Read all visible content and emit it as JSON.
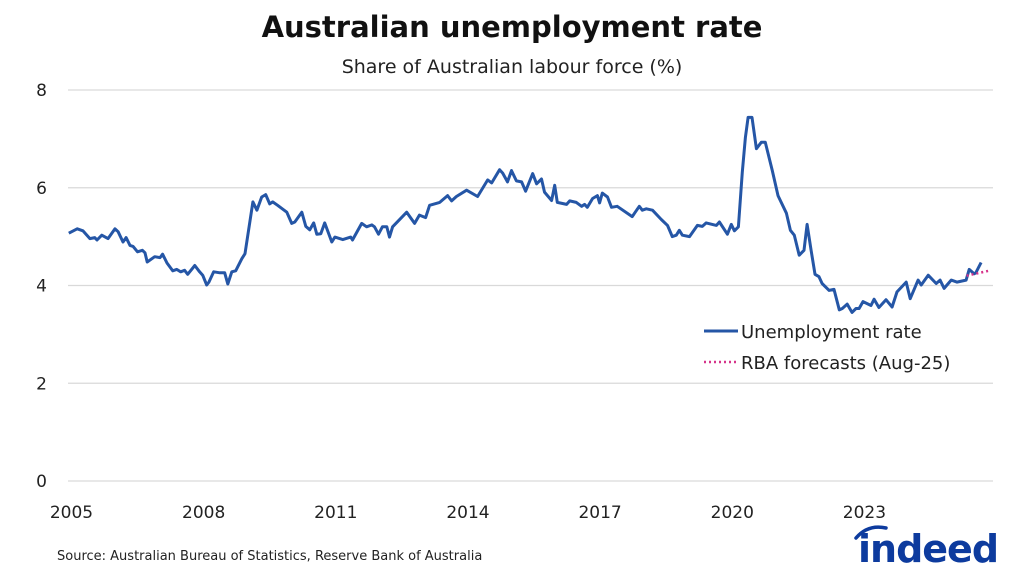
{
  "chart_data": {
    "type": "line",
    "title": "Australian unemployment rate",
    "subtitle": "Share of Australian labour force (%)",
    "xlabel": "",
    "ylabel": "",
    "xlim": [
      2005,
      2026.1
    ],
    "ylim": [
      0,
      8
    ],
    "yticks": [
      0,
      2,
      4,
      6,
      8
    ],
    "xticks": [
      2005,
      2008,
      2011,
      2014,
      2017,
      2020,
      2023
    ],
    "grid": "horizontal",
    "legend_position": "right",
    "series": [
      {
        "name": "Unemployment rate",
        "color": "#2556a6",
        "style": "solid",
        "x": [
          2005.12,
          2005.31,
          2005.44,
          2005.6,
          2005.71,
          2005.76,
          2005.87,
          2006.01,
          2006.17,
          2006.24,
          2006.35,
          2006.42,
          2006.51,
          2006.58,
          2006.68,
          2006.79,
          2006.85,
          2006.9,
          2007.07,
          2007.19,
          2007.25,
          2007.35,
          2007.48,
          2007.57,
          2007.66,
          2007.75,
          2007.82,
          2007.98,
          2008.09,
          2008.16,
          2008.25,
          2008.3,
          2008.41,
          2008.55,
          2008.66,
          2008.73,
          2008.82,
          2008.91,
          2009.05,
          2009.12,
          2009.3,
          2009.39,
          2009.5,
          2009.59,
          2009.68,
          2009.75,
          2009.86,
          2010.07,
          2010.18,
          2010.25,
          2010.41,
          2010.5,
          2010.59,
          2010.68,
          2010.75,
          2010.84,
          2010.93,
          2011.09,
          2011.16,
          2011.34,
          2011.52,
          2011.56,
          2011.77,
          2011.88,
          2012.0,
          2012.06,
          2012.15,
          2012.24,
          2012.34,
          2012.4,
          2012.47,
          2012.79,
          2012.97,
          2013.08,
          2013.22,
          2013.31,
          2013.54,
          2013.72,
          2013.81,
          2013.92,
          2014.15,
          2014.4,
          2014.63,
          2014.72,
          2014.9,
          2014.97,
          2015.08,
          2015.17,
          2015.28,
          2015.4,
          2015.49,
          2015.65,
          2015.74,
          2015.85,
          2015.92,
          2016.08,
          2016.15,
          2016.21,
          2016.42,
          2016.49,
          2016.64,
          2016.76,
          2016.83,
          2016.89,
          2017.01,
          2017.12,
          2017.17,
          2017.23,
          2017.35,
          2017.44,
          2017.57,
          2017.91,
          2018.07,
          2018.14,
          2018.23,
          2018.37,
          2018.57,
          2018.71,
          2018.82,
          2018.91,
          2018.98,
          2019.05,
          2019.21,
          2019.39,
          2019.5,
          2019.59,
          2019.82,
          2019.89,
          2020.07,
          2020.16,
          2020.23,
          2020.32,
          2020.41,
          2020.48,
          2020.54,
          2020.63,
          2020.73,
          2020.84,
          2020.93,
          2021.09,
          2021.22,
          2021.41,
          2021.5,
          2021.59,
          2021.7,
          2021.81,
          2021.88,
          2021.97,
          2022.06,
          2022.15,
          2022.22,
          2022.38,
          2022.49,
          2022.61,
          2022.68,
          2022.79,
          2022.9,
          2022.99,
          2023.06,
          2023.15,
          2023.33,
          2023.4,
          2023.51,
          2023.67,
          2023.81,
          2023.92,
          2024.13,
          2024.22,
          2024.4,
          2024.47,
          2024.63,
          2024.81,
          2024.9,
          2024.99,
          2025.15,
          2025.28,
          2025.49,
          2025.56,
          2025.67,
          2025.71,
          2025.83
        ],
        "y": [
          5.07,
          5.16,
          5.12,
          4.96,
          4.98,
          4.93,
          5.03,
          4.96,
          5.16,
          5.1,
          4.89,
          4.98,
          4.82,
          4.8,
          4.69,
          4.72,
          4.67,
          4.48,
          4.59,
          4.57,
          4.64,
          4.46,
          4.3,
          4.33,
          4.28,
          4.31,
          4.23,
          4.41,
          4.28,
          4.21,
          4.01,
          4.07,
          4.28,
          4.26,
          4.26,
          4.03,
          4.28,
          4.3,
          4.55,
          4.65,
          5.71,
          5.54,
          5.81,
          5.86,
          5.67,
          5.71,
          5.64,
          5.5,
          5.27,
          5.3,
          5.5,
          5.21,
          5.14,
          5.28,
          5.05,
          5.06,
          5.28,
          4.89,
          4.99,
          4.94,
          4.99,
          4.93,
          5.27,
          5.2,
          5.24,
          5.2,
          5.05,
          5.2,
          5.2,
          4.99,
          5.2,
          5.5,
          5.27,
          5.44,
          5.39,
          5.64,
          5.7,
          5.84,
          5.73,
          5.82,
          5.95,
          5.82,
          6.16,
          6.1,
          6.37,
          6.3,
          6.12,
          6.35,
          6.14,
          6.12,
          5.93,
          6.29,
          6.08,
          6.18,
          5.91,
          5.74,
          6.05,
          5.7,
          5.66,
          5.73,
          5.7,
          5.62,
          5.66,
          5.6,
          5.78,
          5.84,
          5.69,
          5.89,
          5.81,
          5.6,
          5.62,
          5.41,
          5.62,
          5.54,
          5.57,
          5.54,
          5.35,
          5.23,
          5.0,
          5.03,
          5.13,
          5.03,
          5.0,
          5.23,
          5.21,
          5.28,
          5.23,
          5.3,
          5.05,
          5.25,
          5.12,
          5.2,
          6.32,
          7.03,
          7.44,
          7.44,
          6.8,
          6.93,
          6.93,
          6.35,
          5.84,
          5.48,
          5.13,
          5.03,
          4.62,
          4.72,
          5.25,
          4.72,
          4.23,
          4.18,
          4.04,
          3.9,
          3.92,
          3.5,
          3.53,
          3.62,
          3.45,
          3.53,
          3.53,
          3.67,
          3.59,
          3.72,
          3.55,
          3.71,
          3.56,
          3.87,
          4.07,
          3.73,
          4.11,
          4.01,
          4.21,
          4.04,
          4.11,
          3.94,
          4.11,
          4.07,
          4.11,
          4.33,
          4.24,
          4.26,
          4.47
        ]
      },
      {
        "name": "RBA forecasts (Aug-25)",
        "color": "#d6338a",
        "style": "dotted",
        "x": [
          2025.5,
          2025.75,
          2026.0
        ],
        "y": [
          4.2,
          4.25,
          4.3
        ]
      }
    ]
  },
  "footer": {
    "source": "Source: Australian Bureau of Statistics, Reserve Bank of Australia",
    "logo_text": "indeed",
    "logo_color": "#0d3b9e"
  }
}
